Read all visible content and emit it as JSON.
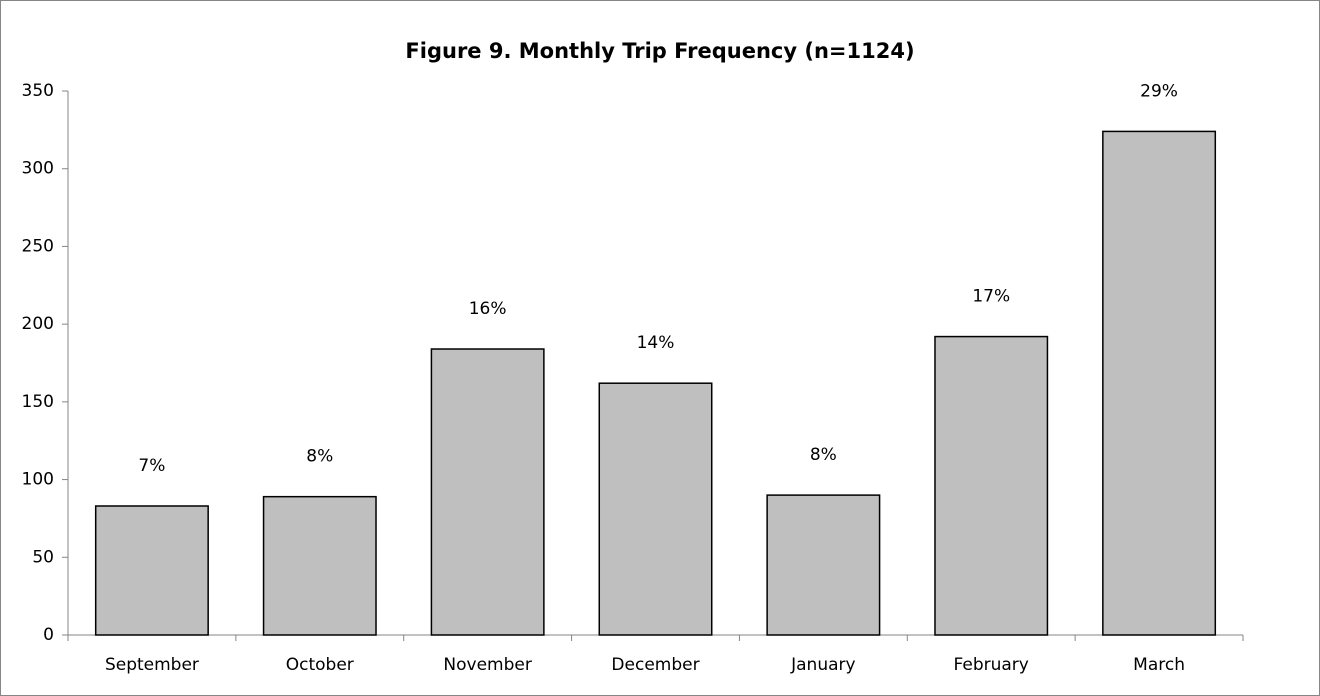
{
  "chart_data": {
    "type": "bar",
    "title": "Figure 9. Monthly Trip Frequency (n=1124)",
    "categories": [
      "September",
      "October",
      "November",
      "December",
      "January",
      "February",
      "March"
    ],
    "values": [
      83,
      89,
      184,
      162,
      90,
      192,
      324
    ],
    "value_labels": [
      "7%",
      "8%",
      "16%",
      "14%",
      "8%",
      "17%",
      "29%"
    ],
    "color": "#bfbfbf",
    "ylim": [
      0,
      350
    ],
    "yticks": [
      0,
      50,
      100,
      150,
      200,
      250,
      300,
      350
    ],
    "grid": false
  }
}
